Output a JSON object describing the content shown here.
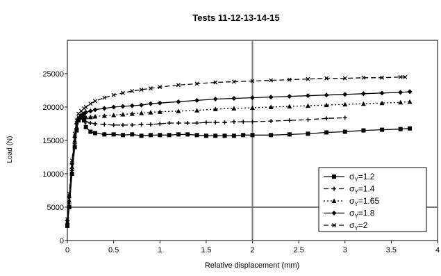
{
  "chart_data": {
    "type": "line",
    "title": "Tests 11-12-13-14-15",
    "xlabel": "Relative displacement (mm)",
    "ylabel": "Load (N)",
    "xlim": [
      0,
      4
    ],
    "ylim": [
      0,
      30000
    ],
    "xticks": [
      0,
      0.5,
      1,
      1.5,
      2,
      2.5,
      3,
      3.5,
      4
    ],
    "xtick_labels": [
      "0",
      "0.5",
      "1",
      "1.5",
      "2",
      "2.5",
      "3",
      "3.5",
      "4"
    ],
    "yticks": [
      0,
      5000,
      10000,
      15000,
      20000,
      25000
    ],
    "ytick_labels": [
      "0",
      "5000",
      "10000",
      "15000",
      "20000",
      "25000"
    ],
    "grid": {
      "x_major": [
        2
      ],
      "y_major": [
        5000
      ]
    },
    "legend": {
      "position": "bottom-right",
      "entries": [
        {
          "prefix": "σ",
          "sub": "Y",
          "suffix": "=1.2"
        },
        {
          "prefix": "σ",
          "sub": "Y",
          "suffix": "=1.4"
        },
        {
          "prefix": "σ",
          "sub": "Y",
          "suffix": "=1.65"
        },
        {
          "prefix": "σ",
          "sub": "Y",
          "suffix": "=1.8"
        },
        {
          "prefix": "σ",
          "sub": "Y",
          "suffix": "=2"
        }
      ]
    },
    "series": [
      {
        "marker": "square",
        "dash": "",
        "x": [
          0,
          0.02,
          0.05,
          0.08,
          0.1,
          0.12,
          0.15,
          0.18,
          0.2,
          0.25,
          0.3,
          0.4,
          0.5,
          0.6,
          0.7,
          0.8,
          0.9,
          1.0,
          1.1,
          1.2,
          1.3,
          1.4,
          1.5,
          1.6,
          1.7,
          1.8,
          1.9,
          2.0,
          2.2,
          2.4,
          2.6,
          2.8,
          3.0,
          3.2,
          3.4,
          3.6,
          3.7
        ],
        "y": [
          2200,
          5000,
          10000,
          14000,
          16500,
          18000,
          18400,
          18000,
          17000,
          16300,
          16100,
          15900,
          15900,
          15800,
          15900,
          15700,
          15800,
          15800,
          15800,
          15900,
          15900,
          15800,
          15700,
          15700,
          15700,
          15700,
          15800,
          15800,
          15800,
          15900,
          16000,
          16200,
          16300,
          16500,
          16600,
          16700,
          16800
        ]
      },
      {
        "marker": "plus",
        "dash": "7,4",
        "x": [
          0,
          0.02,
          0.05,
          0.08,
          0.1,
          0.12,
          0.15,
          0.18,
          0.2,
          0.25,
          0.3,
          0.4,
          0.5,
          0.6,
          0.7,
          0.8,
          0.9,
          1.0,
          1.1,
          1.2,
          1.3,
          1.4,
          1.5,
          1.6,
          1.7,
          1.8,
          1.9,
          2.0,
          2.2,
          2.4,
          2.6,
          2.8,
          3.0
        ],
        "y": [
          2500,
          5500,
          10500,
          14500,
          16800,
          18000,
          18500,
          18300,
          17800,
          17600,
          17500,
          17400,
          17300,
          17300,
          17300,
          17400,
          17400,
          17500,
          17600,
          17600,
          17600,
          17600,
          17700,
          17700,
          17700,
          17800,
          17800,
          17800,
          17900,
          18000,
          18100,
          18300,
          18400
        ]
      },
      {
        "marker": "triangle",
        "dash": "2,3",
        "x": [
          0,
          0.02,
          0.05,
          0.08,
          0.1,
          0.12,
          0.15,
          0.18,
          0.2,
          0.25,
          0.3,
          0.4,
          0.5,
          0.6,
          0.7,
          0.8,
          0.9,
          1.0,
          1.2,
          1.4,
          1.6,
          1.8,
          2.0,
          2.2,
          2.4,
          2.6,
          2.8,
          3.0,
          3.2,
          3.4,
          3.6,
          3.7
        ],
        "y": [
          2800,
          6000,
          11000,
          15000,
          17000,
          18200,
          18600,
          18600,
          18500,
          18500,
          18600,
          18700,
          18800,
          18900,
          19000,
          19100,
          19200,
          19300,
          19400,
          19500,
          19700,
          19800,
          19900,
          20000,
          20100,
          20200,
          20300,
          20400,
          20500,
          20600,
          20700,
          20800
        ]
      },
      {
        "marker": "diamond",
        "dash": "",
        "x": [
          0,
          0.02,
          0.05,
          0.08,
          0.1,
          0.12,
          0.15,
          0.18,
          0.2,
          0.25,
          0.3,
          0.4,
          0.5,
          0.6,
          0.7,
          0.8,
          0.9,
          1.0,
          1.2,
          1.4,
          1.6,
          1.8,
          2.0,
          2.2,
          2.4,
          2.6,
          2.8,
          3.0,
          3.2,
          3.4,
          3.6,
          3.7
        ],
        "y": [
          3000,
          6500,
          11500,
          15500,
          17500,
          18300,
          18800,
          19000,
          19200,
          19400,
          19600,
          19800,
          20000,
          20100,
          20200,
          20300,
          20500,
          20600,
          20800,
          21000,
          21200,
          21300,
          21400,
          21500,
          21600,
          21700,
          21800,
          21900,
          22000,
          22100,
          22200,
          22300
        ]
      },
      {
        "marker": "x",
        "dash": "7,4",
        "x": [
          0,
          0.02,
          0.05,
          0.08,
          0.1,
          0.12,
          0.15,
          0.18,
          0.2,
          0.25,
          0.3,
          0.4,
          0.5,
          0.6,
          0.7,
          0.8,
          0.9,
          1.0,
          1.2,
          1.4,
          1.6,
          1.8,
          2.0,
          2.2,
          2.4,
          2.6,
          2.8,
          3.0,
          3.2,
          3.4,
          3.6,
          3.65
        ],
        "y": [
          3200,
          7000,
          12000,
          16000,
          18000,
          19000,
          19400,
          19800,
          20000,
          20500,
          20900,
          21400,
          21800,
          22100,
          22400,
          22600,
          22800,
          23000,
          23300,
          23500,
          23700,
          23800,
          23900,
          24000,
          24100,
          24200,
          24300,
          24300,
          24400,
          24400,
          24500,
          24500
        ]
      }
    ]
  }
}
